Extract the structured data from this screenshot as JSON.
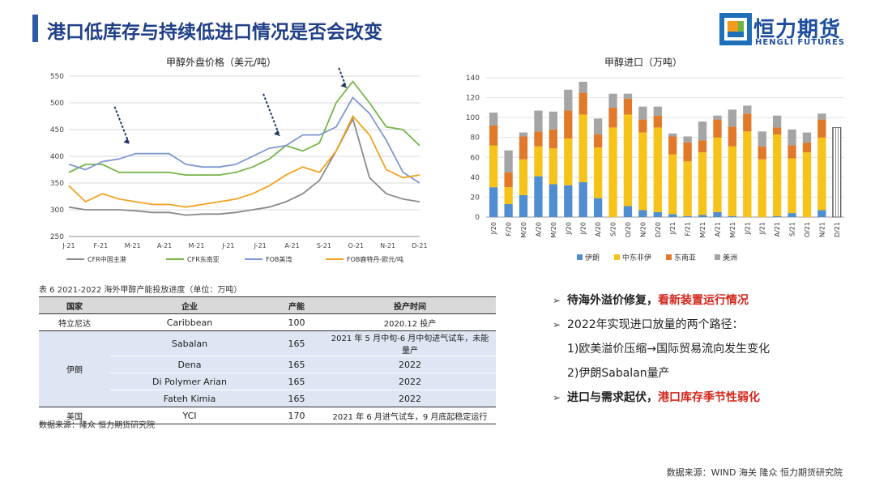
{
  "header": {
    "title": "港口低库存与持续低进口情况是否会改变"
  },
  "logo": {
    "cn": "恒力期货",
    "en": "HENGLI FUTURES"
  },
  "chart_data": [
    {
      "type": "line",
      "title": "甲醇外盘价格（美元/吨）",
      "x_ticks": [
        "J-21",
        "F-21",
        "M-21",
        "A-21",
        "M-21",
        "J-21",
        "J-21",
        "A-21",
        "S-21",
        "O-21",
        "N-21",
        "D-21"
      ],
      "ylim": [
        250,
        550
      ],
      "y_ticks": [
        250,
        300,
        350,
        400,
        450,
        500,
        550
      ],
      "grid": true,
      "legend": "bottom",
      "series": [
        {
          "name": "CFR中国主港",
          "color": "#8a8a8a",
          "values": [
            305,
            300,
            300,
            300,
            298,
            295,
            295,
            290,
            292,
            292,
            295,
            300,
            305,
            315,
            330,
            355,
            410,
            470,
            360,
            330,
            320,
            315
          ]
        },
        {
          "name": "CFR东南亚",
          "color": "#77b54a",
          "values": [
            370,
            385,
            385,
            370,
            370,
            370,
            370,
            365,
            365,
            365,
            370,
            380,
            395,
            420,
            410,
            425,
            500,
            540,
            500,
            455,
            450,
            420
          ]
        },
        {
          "name": "FOB美湾",
          "color": "#7f98cf",
          "values": [
            385,
            375,
            390,
            395,
            405,
            405,
            405,
            385,
            380,
            380,
            385,
            400,
            415,
            420,
            440,
            440,
            455,
            510,
            480,
            430,
            370,
            350
          ]
        },
        {
          "name": "FOB鹿特丹-欧元/吨",
          "color": "#f0a21e",
          "values": [
            345,
            315,
            330,
            320,
            315,
            310,
            310,
            305,
            310,
            315,
            320,
            330,
            345,
            365,
            380,
            370,
            410,
            475,
            440,
            375,
            360,
            365
          ]
        }
      ],
      "annotations": [
        "arrow",
        "arrow",
        "arrow"
      ]
    },
    {
      "type": "bar",
      "title": "甲醇进口（万吨）",
      "categories": [
        "J/20",
        "F/20",
        "M/20",
        "A/20",
        "M/20",
        "J/20",
        "J/20",
        "A/20",
        "S/20",
        "O/20",
        "N/20",
        "D/20",
        "J/21",
        "F/21",
        "M/21",
        "A/21",
        "M/21",
        "J/21",
        "J/21",
        "A/21",
        "S/21",
        "O/21",
        "N/21",
        "D/21"
      ],
      "ylim": [
        0,
        140
      ],
      "y_ticks": [
        0,
        20,
        40,
        60,
        80,
        100,
        120,
        140
      ],
      "legend": "bottom",
      "series": [
        {
          "name": "伊朗",
          "color": "#4f8ed0",
          "values": [
            30,
            13,
            22,
            41,
            33,
            32,
            35,
            19,
            0,
            11,
            7,
            5,
            3,
            1,
            2,
            5,
            1,
            0,
            0,
            1,
            4,
            0,
            7,
            null
          ]
        },
        {
          "name": "中东非伊",
          "color": "#f6c31a",
          "values": [
            42,
            17,
            36,
            30,
            36,
            47,
            68,
            51,
            90,
            92,
            78,
            85,
            60,
            55,
            63,
            75,
            70,
            86,
            58,
            82,
            55,
            65,
            73,
            null
          ]
        },
        {
          "name": "东南亚",
          "color": "#e07a2a",
          "values": [
            20,
            15,
            23,
            15,
            19,
            28,
            22,
            13,
            20,
            16,
            13,
            12,
            18,
            19,
            12,
            18,
            20,
            18,
            13,
            7,
            13,
            10,
            18,
            null
          ]
        },
        {
          "name": "美洲",
          "color": "#a5a5a5",
          "values": [
            13,
            22,
            4,
            21,
            18,
            21,
            11,
            16,
            14,
            5,
            13,
            9,
            3,
            6,
            19,
            4,
            17,
            8,
            15,
            12,
            16,
            10,
            6,
            null
          ]
        }
      ],
      "hatched_total": {
        "category": "D/21",
        "value": 90
      }
    }
  ],
  "table": {
    "caption": "表 6 2021-2022 海外甲醇产能投放进度（单位：万吨）",
    "headers": [
      "国家",
      "企业",
      "产能",
      "投产时间"
    ],
    "rows": [
      {
        "country": "特立尼达",
        "company": "Caribbean",
        "capacity": "100",
        "time": "2020.12 投产"
      },
      {
        "country": "伊朗",
        "company": "Sabalan",
        "capacity": "165",
        "time": "2021 年 5 月中旬-6 月中旬进气试车，未能量产"
      },
      {
        "country": "",
        "company": "Dena",
        "capacity": "165",
        "time": "2022"
      },
      {
        "country": "",
        "company": "Di Polymer Arian",
        "capacity": "165",
        "time": "2022"
      },
      {
        "country": "",
        "company": "Fateh Kimia",
        "capacity": "165",
        "time": "2022"
      },
      {
        "country": "美国",
        "company": "YCI",
        "capacity": "170",
        "time": "2021 年 6 月进气试车，9 月底起稳定运行"
      }
    ],
    "source": "数据来源：隆众 恒力期货研究院"
  },
  "bullets": {
    "b1_prefix": "待海外溢价修复，",
    "b1_red": "看新装置运行情况",
    "b2": "2022年实现进口放量的两个路径：",
    "b2_1": "1)欧美溢价压缩→国际贸易流向发生变化",
    "b2_2": "2)伊朗Sabalan量产",
    "b3_prefix": "进口与需求起伏，",
    "b3_red": "港口库存季节性弱化"
  },
  "footer": {
    "source": "数据来源：WIND 海关 隆众 恒力期货研究院"
  }
}
